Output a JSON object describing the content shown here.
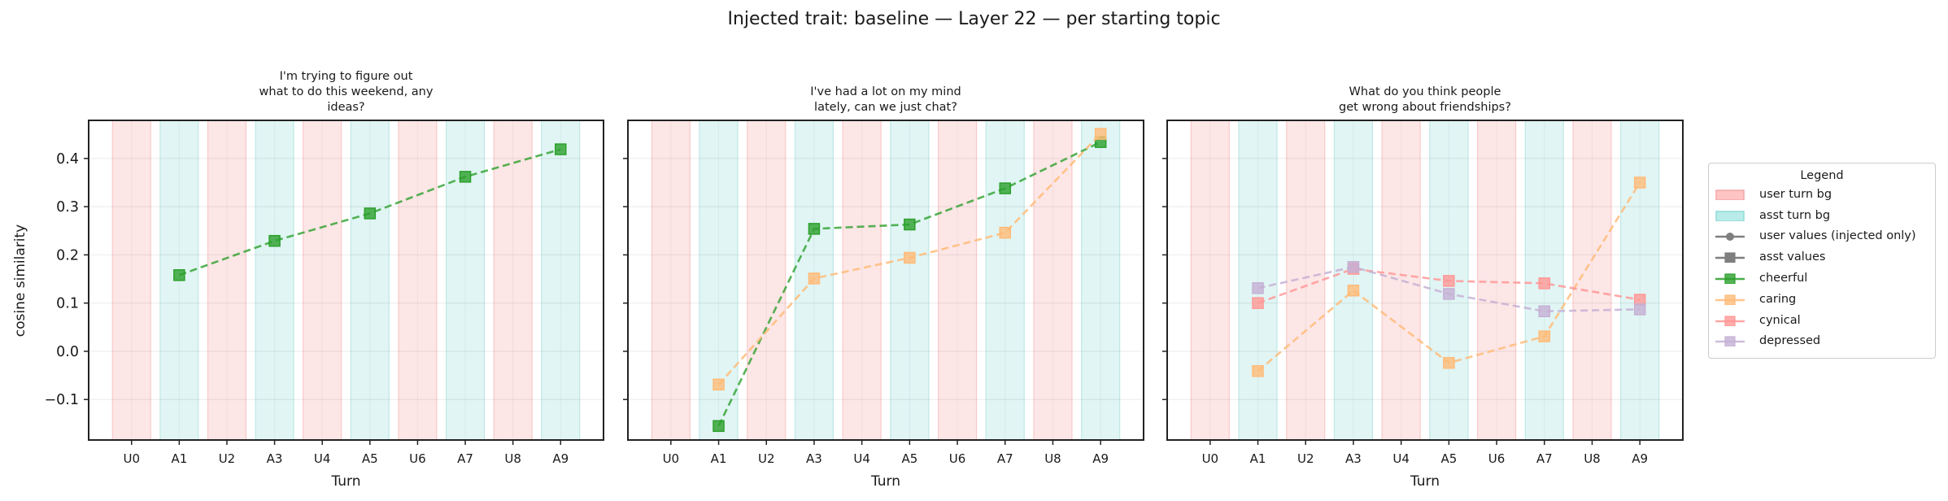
{
  "figure": {
    "suptitle": "Injected trait: baseline — Layer 22 — per starting topic",
    "ylabel": "cosine similarity",
    "xlabel": "Turn",
    "colors": {
      "user_bg": "#fde6e6",
      "user_bg_edge": "#f9c9c9",
      "asst_bg": "#e0f5f4",
      "asst_bg_edge": "#bfe8e6",
      "cheerful": "#2ca02c",
      "caring": "#ffbb78",
      "cynical": "#ff9896",
      "depressed": "#c5b0d5",
      "neutral": "#7f7f7f"
    }
  },
  "legend": {
    "title": "Legend",
    "items": [
      {
        "label": "user turn bg",
        "kind": "patch",
        "color": "#ffc4c4",
        "edge": "#f4a6a6"
      },
      {
        "label": "asst turn bg",
        "kind": "patch",
        "color": "#b9ebe8",
        "edge": "#8fdcd7"
      },
      {
        "label": "user values (injected only)",
        "kind": "line-circle",
        "color": "#7f7f7f"
      },
      {
        "label": "asst values",
        "kind": "line-square",
        "color": "#7f7f7f"
      },
      {
        "label": "cheerful",
        "kind": "dashed-square",
        "color": "#2ca02c"
      },
      {
        "label": "caring",
        "kind": "dashed-square",
        "color": "#ffbb78"
      },
      {
        "label": "cynical",
        "kind": "dashed-square",
        "color": "#ff9896"
      },
      {
        "label": "depressed",
        "kind": "dashed-square",
        "color": "#c5b0d5"
      }
    ]
  },
  "chart_data": [
    {
      "type": "line",
      "title": "I'm trying to figure out\nwhat to do this weekend, any\nideas?",
      "xlabel": "Turn",
      "ylabel": "cosine similarity",
      "categories": [
        "U0",
        "A1",
        "U2",
        "A3",
        "U4",
        "A5",
        "U6",
        "A7",
        "U8",
        "A9"
      ],
      "ylim": [
        -0.184,
        0.479
      ],
      "yticks": [
        -0.1,
        0.0,
        0.1,
        0.2,
        0.3,
        0.4
      ],
      "grid": true,
      "series": [
        {
          "name": "cheerful",
          "x": [
            "A1",
            "A3",
            "A5",
            "A7",
            "A9"
          ],
          "values": [
            0.158,
            0.229,
            0.286,
            0.362,
            0.419
          ]
        }
      ]
    },
    {
      "type": "line",
      "title": "I've had a lot on my mind\nlately, can we just chat?",
      "xlabel": "Turn",
      "ylabel": "",
      "categories": [
        "U0",
        "A1",
        "U2",
        "A3",
        "U4",
        "A5",
        "U6",
        "A7",
        "U8",
        "A9"
      ],
      "ylim": [
        -0.184,
        0.479
      ],
      "yticks": [
        -0.1,
        0.0,
        0.1,
        0.2,
        0.3,
        0.4
      ],
      "grid": true,
      "series": [
        {
          "name": "cheerful",
          "x": [
            "A1",
            "A3",
            "A5",
            "A7",
            "A9"
          ],
          "values": [
            -0.155,
            0.254,
            0.263,
            0.338,
            0.434
          ]
        },
        {
          "name": "caring",
          "x": [
            "A1",
            "A3",
            "A5",
            "A7",
            "A9"
          ],
          "values": [
            -0.069,
            0.151,
            0.194,
            0.246,
            0.451
          ]
        }
      ]
    },
    {
      "type": "line",
      "title": "What do you think people\nget wrong about friendships?",
      "xlabel": "Turn",
      "ylabel": "",
      "categories": [
        "U0",
        "A1",
        "U2",
        "A3",
        "U4",
        "A5",
        "U6",
        "A7",
        "U8",
        "A9"
      ],
      "ylim": [
        -0.184,
        0.479
      ],
      "yticks": [
        -0.1,
        0.0,
        0.1,
        0.2,
        0.3,
        0.4
      ],
      "grid": true,
      "series": [
        {
          "name": "caring",
          "x": [
            "A1",
            "A3",
            "A5",
            "A7",
            "A9"
          ],
          "values": [
            -0.041,
            0.126,
            -0.024,
            0.031,
            0.35
          ]
        },
        {
          "name": "cynical",
          "x": [
            "A1",
            "A3",
            "A5",
            "A7",
            "A9"
          ],
          "values": [
            0.1,
            0.171,
            0.146,
            0.141,
            0.107
          ]
        },
        {
          "name": "depressed",
          "x": [
            "A1",
            "A3",
            "A5",
            "A7",
            "A9"
          ],
          "values": [
            0.131,
            0.175,
            0.119,
            0.083,
            0.087
          ]
        }
      ]
    }
  ]
}
